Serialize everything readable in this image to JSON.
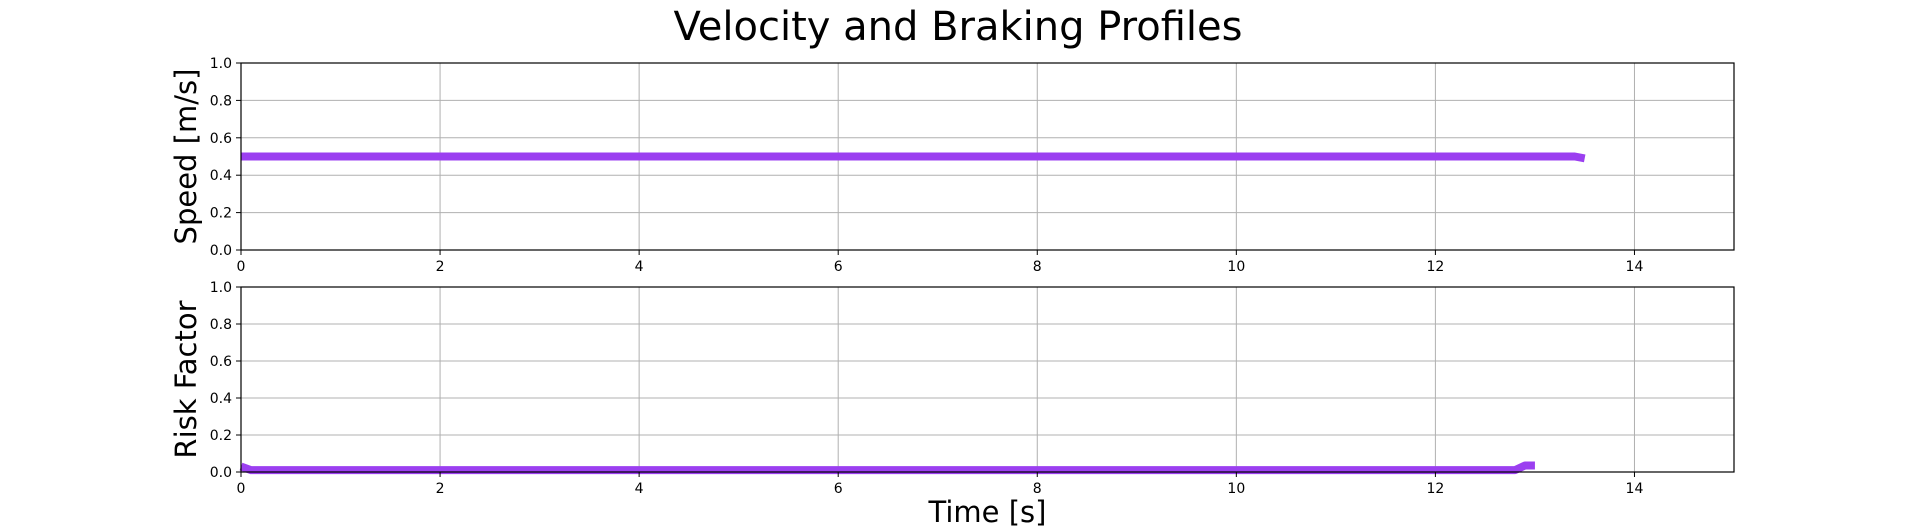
{
  "chart_data": {
    "title": "Velocity and Braking Profiles",
    "type": "line",
    "line_color": "#9b3ff0",
    "subplots": [
      {
        "ylabel": "Speed [m/s]",
        "xlabel": "",
        "xlim": [
          0,
          15
        ],
        "ylim": [
          0,
          1.0
        ],
        "xticks": [
          "0",
          "2",
          "4",
          "6",
          "8",
          "10",
          "12",
          "14"
        ],
        "yticks": [
          "0.0",
          "0.2",
          "0.4",
          "0.6",
          "0.8",
          "1.0"
        ],
        "grid": true,
        "series": [
          {
            "x": [
              0,
              1,
              2,
              3,
              4,
              5,
              6,
              7,
              8,
              9,
              10,
              11,
              12,
              13,
              13.4,
              13.5
            ],
            "y": [
              0.5,
              0.5,
              0.5,
              0.5,
              0.5,
              0.5,
              0.5,
              0.5,
              0.5,
              0.5,
              0.5,
              0.5,
              0.5,
              0.5,
              0.5,
              0.49
            ]
          }
        ]
      },
      {
        "ylabel": "Risk Factor",
        "xlabel": "Time [s]",
        "xlim": [
          0,
          15
        ],
        "ylim": [
          0,
          1.0
        ],
        "xticks": [
          "0",
          "2",
          "4",
          "6",
          "8",
          "10",
          "12",
          "14"
        ],
        "yticks": [
          "0.0",
          "0.2",
          "0.4",
          "0.6",
          "0.8",
          "1.0"
        ],
        "grid": true,
        "series": [
          {
            "x": [
              0,
              0.1,
              1,
              2,
              3,
              4,
              5,
              6,
              7,
              8,
              9,
              10,
              11,
              12,
              12.8,
              12.9,
              13.0
            ],
            "y": [
              0.03,
              0.01,
              0.01,
              0.01,
              0.01,
              0.01,
              0.01,
              0.01,
              0.01,
              0.01,
              0.01,
              0.01,
              0.01,
              0.01,
              0.01,
              0.035,
              0.035
            ]
          }
        ]
      }
    ]
  }
}
